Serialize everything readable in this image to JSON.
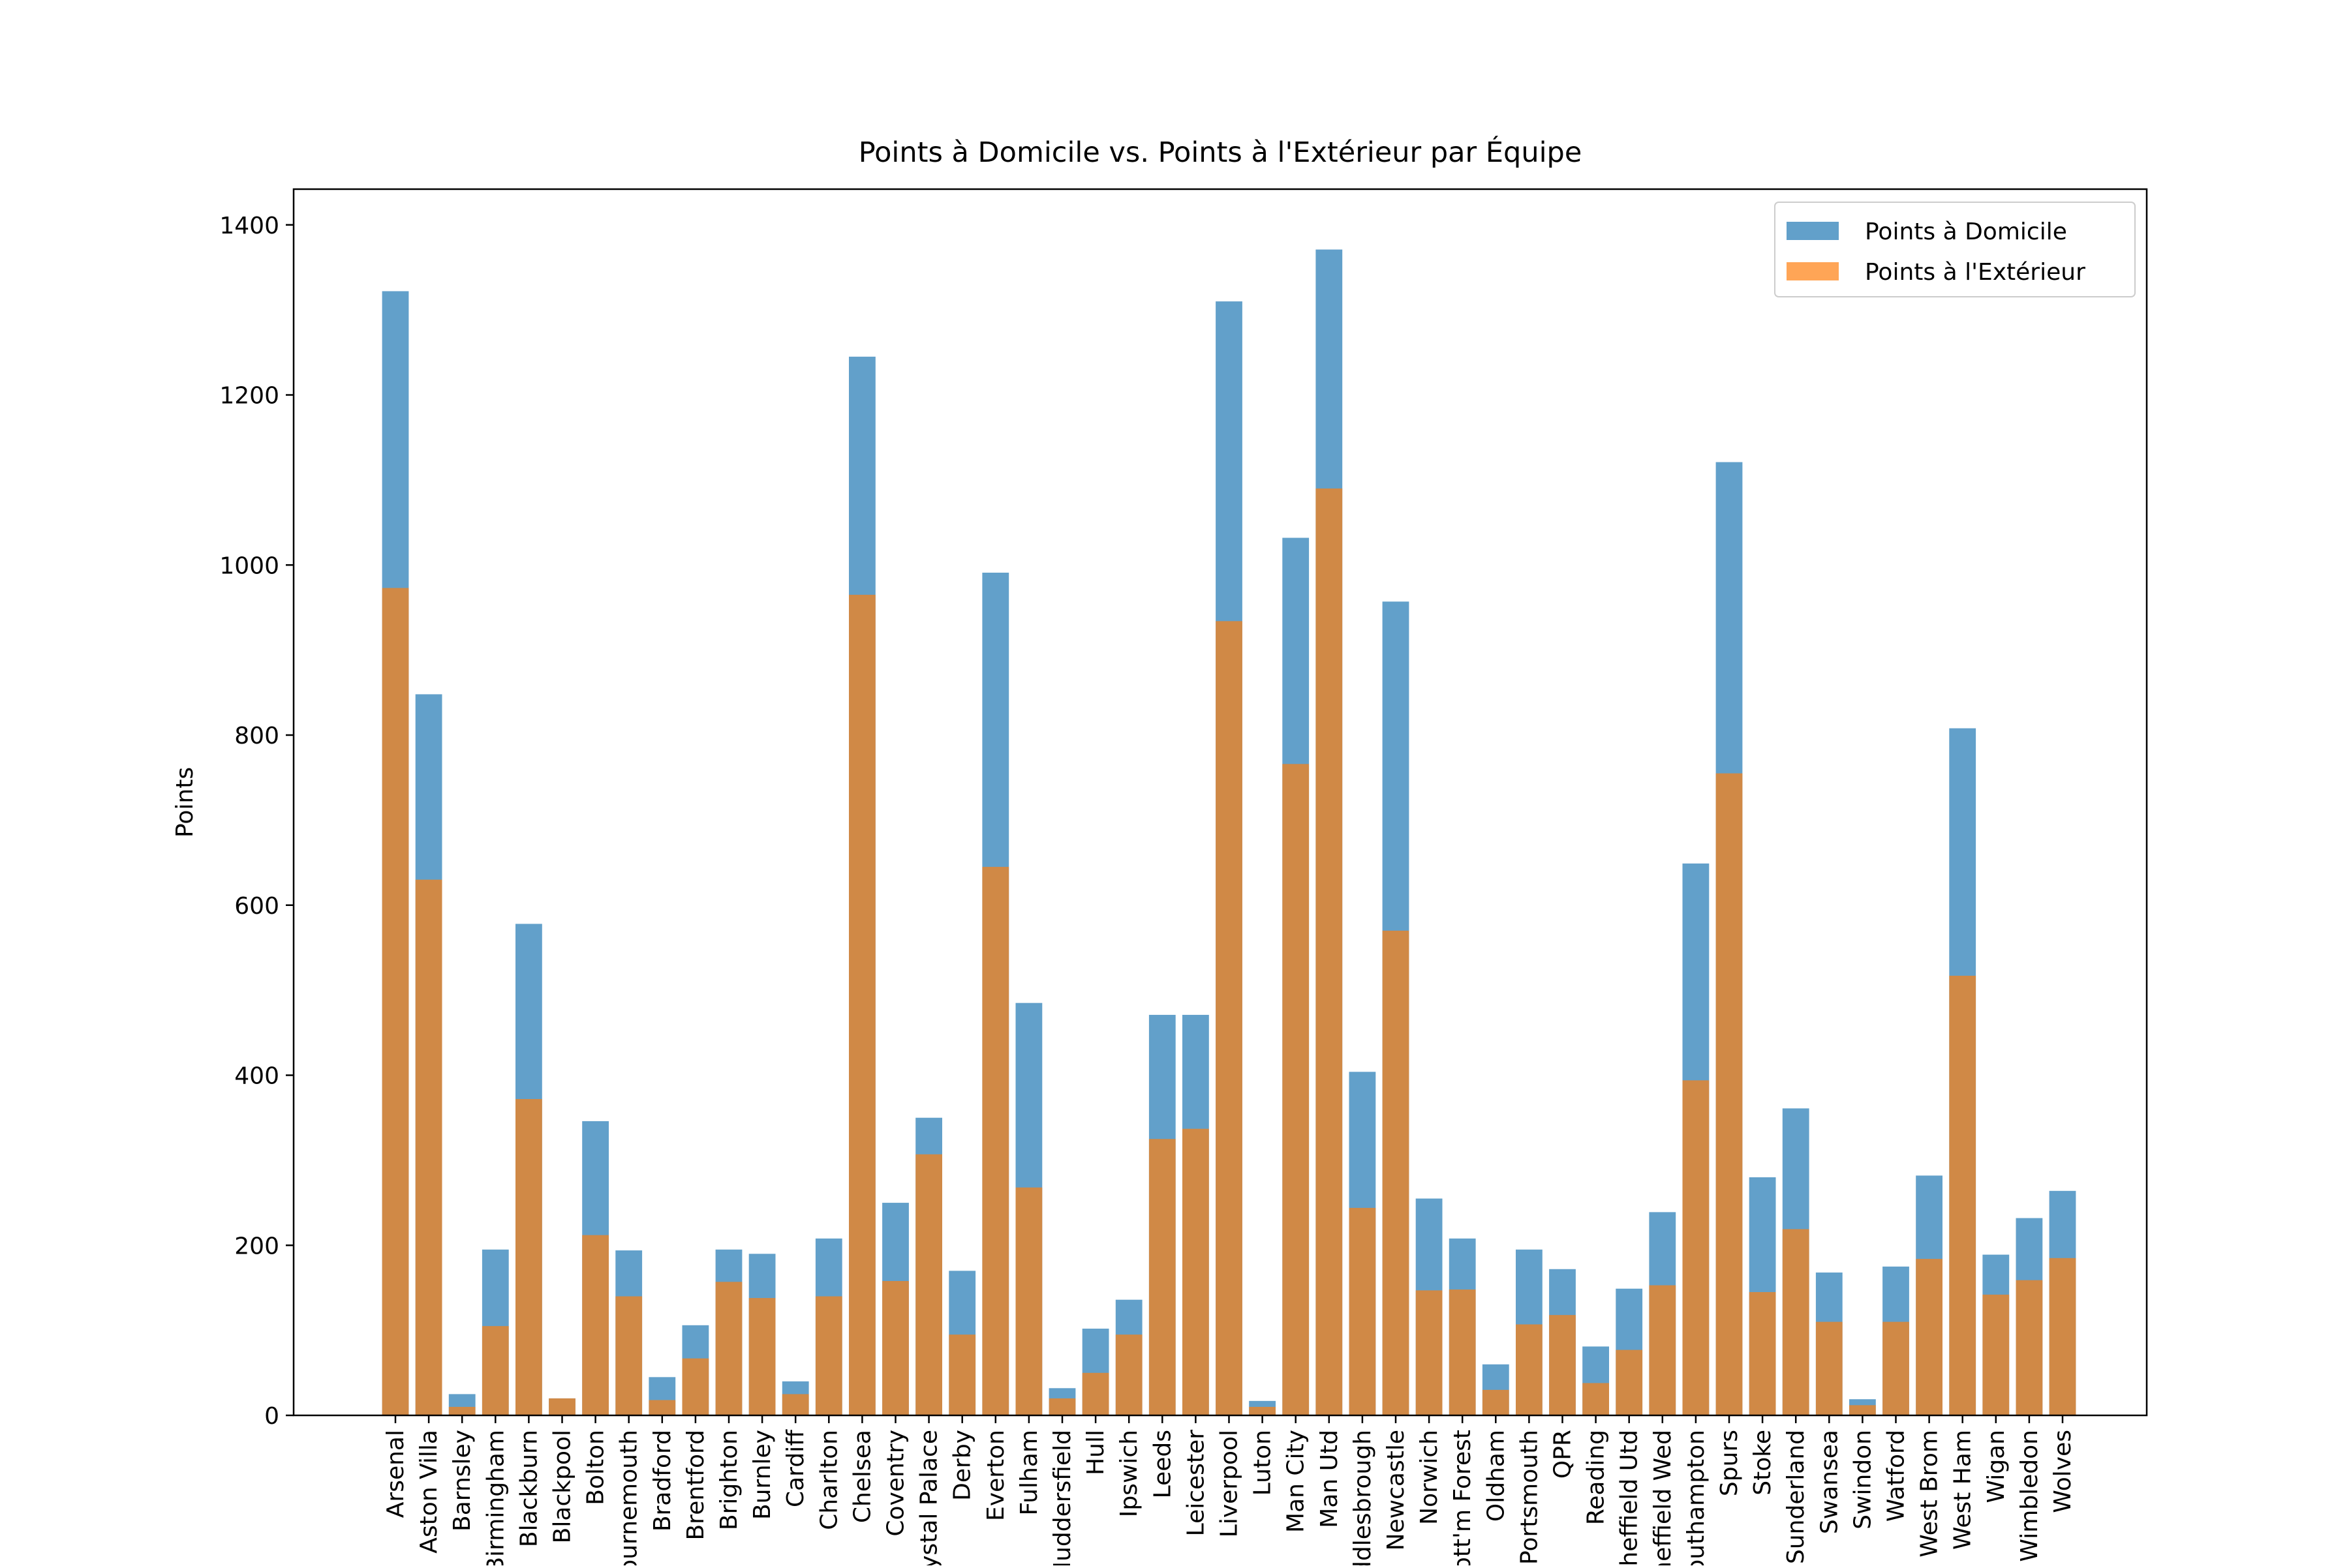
{
  "chart_data": {
    "type": "bar",
    "title": "Points à Domicile vs. Points à l'Extérieur par Équipe",
    "xlabel": "",
    "ylabel": "Points",
    "ylim": [
      0,
      1442
    ],
    "yticks": [
      0,
      200,
      400,
      600,
      800,
      1000,
      1200,
      1400
    ],
    "grid": false,
    "legend_position": "top-right",
    "categories": [
      "Arsenal",
      "Aston Villa",
      "Barnsley",
      "Birmingham",
      "Blackburn",
      "Blackpool",
      "Bolton",
      "Bournemouth",
      "Bradford",
      "Brentford",
      "Brighton",
      "Burnley",
      "Cardiff",
      "Charlton",
      "Chelsea",
      "Coventry",
      "Crystal Palace",
      "Derby",
      "Everton",
      "Fulham",
      "Huddersfield",
      "Hull",
      "Ipswich",
      "Leeds",
      "Leicester",
      "Liverpool",
      "Luton",
      "Man City",
      "Man Utd",
      "Middlesbrough",
      "Newcastle",
      "Norwich",
      "Nott'm Forest",
      "Oldham",
      "Portsmouth",
      "QPR",
      "Reading",
      "Sheffield Utd",
      "Sheffield Wed",
      "Southampton",
      "Spurs",
      "Stoke",
      "Sunderland",
      "Swansea",
      "Swindon",
      "Watford",
      "West Brom",
      "West Ham",
      "Wigan",
      "Wimbledon",
      "Wolves"
    ],
    "series": [
      {
        "name": "Points à Domicile",
        "color": "#1f77b4",
        "values": [
          1322,
          848,
          25,
          195,
          578,
          20,
          346,
          194,
          45,
          106,
          195,
          190,
          40,
          208,
          1245,
          250,
          350,
          170,
          991,
          485,
          32,
          102,
          136,
          471,
          471,
          1310,
          17,
          1032,
          1371,
          404,
          957,
          255,
          208,
          60,
          195,
          172,
          81,
          149,
          239,
          649,
          1121,
          280,
          361,
          168,
          19,
          175,
          282,
          808,
          189,
          232,
          264
        ]
      },
      {
        "name": "Points à l'Extérieur",
        "color": "#ff7f0e",
        "values": [
          973,
          630,
          10,
          105,
          372,
          20,
          212,
          140,
          18,
          67,
          157,
          138,
          25,
          140,
          965,
          158,
          307,
          95,
          645,
          268,
          20,
          50,
          95,
          325,
          337,
          934,
          10,
          766,
          1090,
          244,
          570,
          147,
          148,
          30,
          107,
          118,
          38,
          77,
          153,
          394,
          755,
          145,
          219,
          110,
          12,
          110,
          184,
          517,
          142,
          159,
          185
        ]
      }
    ]
  }
}
